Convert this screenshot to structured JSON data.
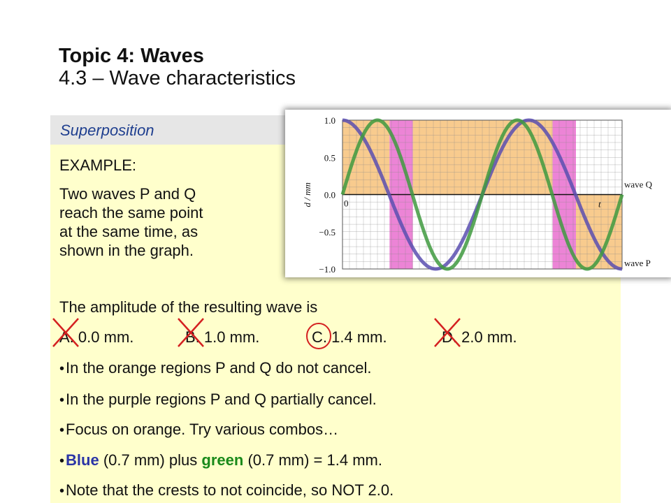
{
  "header": {
    "title": "Topic 4: Waves",
    "subtitle": "4.3 – Wave characteristics"
  },
  "section": {
    "label": "Superposition"
  },
  "example": {
    "heading": "EXAMPLE:",
    "question_lines": [
      "Two waves P and Q",
      "reach the same point",
      "at the same time, as",
      "shown in the graph."
    ],
    "prompt": "The amplitude of the resulting wave is",
    "options": [
      {
        "letter": "A.",
        "text": "0.0 mm.",
        "crossed": true
      },
      {
        "letter": "B.",
        "text": "1.0 mm.",
        "crossed": true
      },
      {
        "letter": "C.",
        "text": "1.4 mm.",
        "correct": true
      },
      {
        "letter": "D.",
        "text": "2.0 mm.",
        "crossed": true
      }
    ]
  },
  "notes": {
    "bullet_glyph": "•",
    "n1": "In the orange regions P and Q do not cancel.",
    "n2": "In the purple regions P and Q partially cancel.",
    "n3": "Focus on orange. Try various combos…",
    "n4_blue": "Blue",
    "n4_mid": " (0.7 mm) plus ",
    "n4_green": "green",
    "n4_end": " (0.7 mm) = 1.4 mm.",
    "n5": "Note that the crests to not coincide, so NOT 2.0."
  },
  "colors": {
    "orange_region": "#f7c27a",
    "purple_region": "#e96fcf",
    "wave_p": "#5a4fb0",
    "wave_q": "#3f9a3f",
    "cross": "#d42020"
  },
  "chart_data": {
    "type": "line",
    "title": "",
    "ylabel": "d / mm",
    "xlabel": "t",
    "ylim": [
      -1.0,
      1.0
    ],
    "yticks": [
      "1.0",
      "0.5",
      "0.0",
      "−0.5",
      "−1.0"
    ],
    "ytick_values": [
      1.0,
      0.5,
      0.0,
      -0.5,
      -1.0
    ],
    "origin_label": "0",
    "grid": true,
    "series": [
      {
        "name": "wave P",
        "amplitude": 1.0,
        "phase_deg": 90,
        "cycles": 1.5
      },
      {
        "name": "wave Q",
        "amplitude": 1.0,
        "phase_deg": 0,
        "cycles": 2
      }
    ]
  }
}
